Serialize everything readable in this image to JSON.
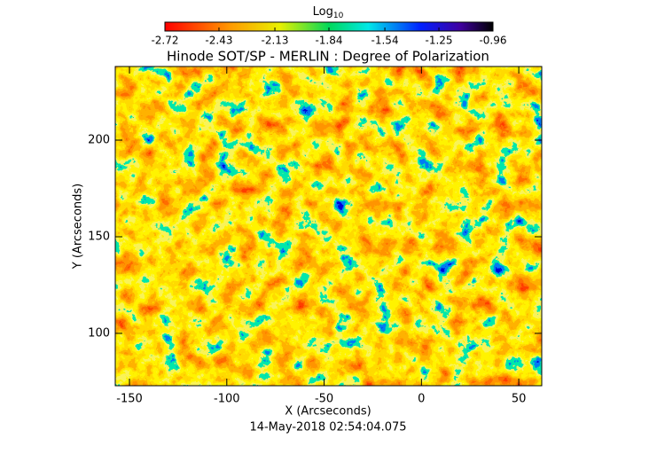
{
  "chart_data": {
    "type": "heatmap",
    "title": "Hinode SOT/SP - MERLIN : Degree of Polarization",
    "colorbar": {
      "label": "Log",
      "label_subscript": "10",
      "lim": [
        -2.72,
        -0.96
      ],
      "ticks": [
        -2.72,
        -2.43,
        -2.13,
        -1.84,
        -1.54,
        -1.25,
        -0.96
      ]
    },
    "x_label": "X (Arcseconds)",
    "y_label": "Y (Arcseconds)",
    "footer": "14-May-2018 02:54:04.075",
    "xlim": [
      -157.3,
      61.8
    ],
    "xticks": [
      -150,
      -100,
      -50,
      0,
      50
    ],
    "ylim": [
      72.9,
      238.1
    ],
    "yticks": [
      100,
      150,
      200
    ]
  }
}
